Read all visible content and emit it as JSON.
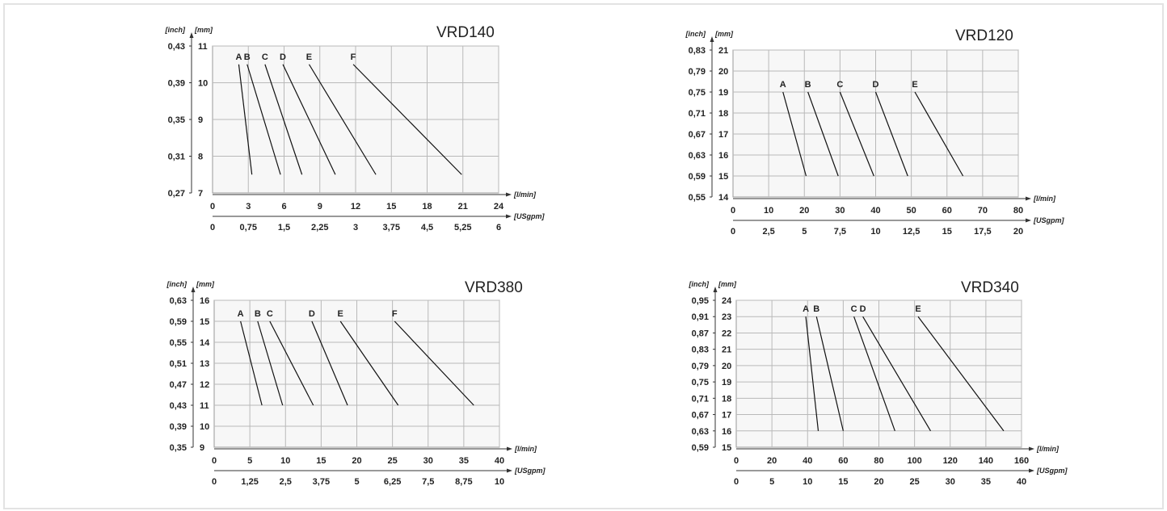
{
  "units": {
    "inch": "[inch]",
    "mm": "[mm]",
    "lmin": "[l/min]",
    "usgpm": "[USgpm]"
  },
  "chart_data": [
    {
      "type": "line",
      "title": "VRD140",
      "xlim": [
        0,
        24
      ],
      "ylim": [
        7,
        11
      ],
      "x_ticks": [
        "0",
        "3",
        "6",
        "9",
        "12",
        "15",
        "18",
        "21",
        "24"
      ],
      "x2_ticks": [
        "0",
        "0,75",
        "1,5",
        "2,25",
        "3",
        "3,75",
        "4,5",
        "5,25",
        "6"
      ],
      "y_ticks": [
        "7",
        "8",
        "9",
        "10",
        "11"
      ],
      "y2_ticks": [
        "0,27",
        "0,31",
        "0,35",
        "0,39",
        "0,43"
      ],
      "grid_x": [
        3,
        6,
        9,
        12,
        15,
        18,
        21,
        24
      ],
      "grid_y": [
        8,
        9,
        10,
        11
      ],
      "series": [
        {
          "name": "A",
          "x1": 2.2,
          "y1": 10.5,
          "x2": 3.3,
          "y2": 7.5
        },
        {
          "name": "B",
          "x1": 2.9,
          "y1": 10.5,
          "x2": 5.7,
          "y2": 7.5
        },
        {
          "name": "C",
          "x1": 4.4,
          "y1": 10.5,
          "x2": 7.5,
          "y2": 7.5
        },
        {
          "name": "D",
          "x1": 5.9,
          "y1": 10.5,
          "x2": 10.3,
          "y2": 7.5
        },
        {
          "name": "E",
          "x1": 8.1,
          "y1": 10.5,
          "x2": 13.7,
          "y2": 7.5
        },
        {
          "name": "F",
          "x1": 11.8,
          "y1": 10.5,
          "x2": 20.9,
          "y2": 7.5
        }
      ]
    },
    {
      "type": "line",
      "title": "VRD120",
      "xlim": [
        0,
        80
      ],
      "ylim": [
        14,
        21
      ],
      "x_ticks": [
        "0",
        "10",
        "20",
        "30",
        "40",
        "50",
        "60",
        "70",
        "80"
      ],
      "x2_ticks": [
        "0",
        "2,5",
        "5",
        "7,5",
        "10",
        "12,5",
        "15",
        "17,5",
        "20"
      ],
      "y_ticks": [
        "14",
        "15",
        "16",
        "17",
        "18",
        "19",
        "20",
        "21"
      ],
      "y2_ticks": [
        "0,55",
        "0,59",
        "0,63",
        "0,67",
        "0,71",
        "0,75",
        "0,79",
        "0,83"
      ],
      "grid_x": [
        10,
        20,
        30,
        40,
        50,
        60,
        70,
        80
      ],
      "grid_y": [
        15,
        16,
        17,
        18,
        19,
        20,
        21
      ],
      "series": [
        {
          "name": "A",
          "x1": 14,
          "y1": 19,
          "x2": 20.5,
          "y2": 15
        },
        {
          "name": "B",
          "x1": 21,
          "y1": 19,
          "x2": 29.5,
          "y2": 15
        },
        {
          "name": "C",
          "x1": 30,
          "y1": 19,
          "x2": 39.5,
          "y2": 15
        },
        {
          "name": "D",
          "x1": 40,
          "y1": 19,
          "x2": 49,
          "y2": 15
        },
        {
          "name": "E",
          "x1": 51,
          "y1": 19,
          "x2": 64.5,
          "y2": 15
        }
      ]
    },
    {
      "type": "line",
      "title": "VRD380",
      "xlim": [
        0,
        40
      ],
      "ylim": [
        9,
        16
      ],
      "x_ticks": [
        "0",
        "5",
        "10",
        "15",
        "20",
        "25",
        "30",
        "35",
        "40"
      ],
      "x2_ticks": [
        "0",
        "1,25",
        "2,5",
        "3,75",
        "5",
        "6,25",
        "7,5",
        "8,75",
        "10"
      ],
      "y_ticks": [
        "9",
        "10",
        "11",
        "12",
        "13",
        "14",
        "15",
        "16"
      ],
      "y2_ticks": [
        "0,35",
        "0,39",
        "0,43",
        "0,47",
        "0,51",
        "0,55",
        "0,59",
        "0,63"
      ],
      "grid_x": [
        5,
        10,
        15,
        20,
        25,
        30,
        35,
        40
      ],
      "grid_y": [
        10,
        11,
        12,
        13,
        14,
        15,
        16
      ],
      "series": [
        {
          "name": "A",
          "x1": 3.7,
          "y1": 15,
          "x2": 6.7,
          "y2": 11
        },
        {
          "name": "B",
          "x1": 6.1,
          "y1": 15,
          "x2": 9.6,
          "y2": 11
        },
        {
          "name": "C",
          "x1": 7.8,
          "y1": 15,
          "x2": 13.9,
          "y2": 11
        },
        {
          "name": "D",
          "x1": 13.7,
          "y1": 15,
          "x2": 18.7,
          "y2": 11
        },
        {
          "name": "E",
          "x1": 17.7,
          "y1": 15,
          "x2": 25.8,
          "y2": 11
        },
        {
          "name": "F",
          "x1": 25.3,
          "y1": 15,
          "x2": 36.4,
          "y2": 11
        }
      ]
    },
    {
      "type": "line",
      "title": "VRD340",
      "xlim": [
        0,
        160
      ],
      "ylim": [
        15,
        24
      ],
      "x_ticks": [
        "0",
        "20",
        "40",
        "60",
        "80",
        "100",
        "120",
        "140",
        "160"
      ],
      "x2_ticks": [
        "0",
        "5",
        "10",
        "15",
        "20",
        "25",
        "30",
        "35",
        "40"
      ],
      "y_ticks": [
        "15",
        "16",
        "17",
        "18",
        "19",
        "20",
        "21",
        "22",
        "23",
        "24"
      ],
      "y2_ticks": [
        "0,59",
        "0,63",
        "0,67",
        "0,71",
        "0,75",
        "0,79",
        "0,83",
        "0,87",
        "0,91",
        "0,95"
      ],
      "grid_x": [
        20,
        40,
        60,
        80,
        100,
        120,
        140,
        160
      ],
      "grid_y": [
        16,
        17,
        18,
        19,
        20,
        21,
        22,
        23,
        24
      ],
      "series": [
        {
          "name": "A",
          "x1": 39,
          "y1": 23,
          "x2": 46,
          "y2": 16
        },
        {
          "name": "B",
          "x1": 45,
          "y1": 23,
          "x2": 60,
          "y2": 16
        },
        {
          "name": "C",
          "x1": 66,
          "y1": 23,
          "x2": 89,
          "y2": 16
        },
        {
          "name": "D",
          "x1": 71,
          "y1": 23,
          "x2": 109,
          "y2": 16
        },
        {
          "name": "E",
          "x1": 102,
          "y1": 23,
          "x2": 150,
          "y2": 16
        }
      ]
    }
  ]
}
